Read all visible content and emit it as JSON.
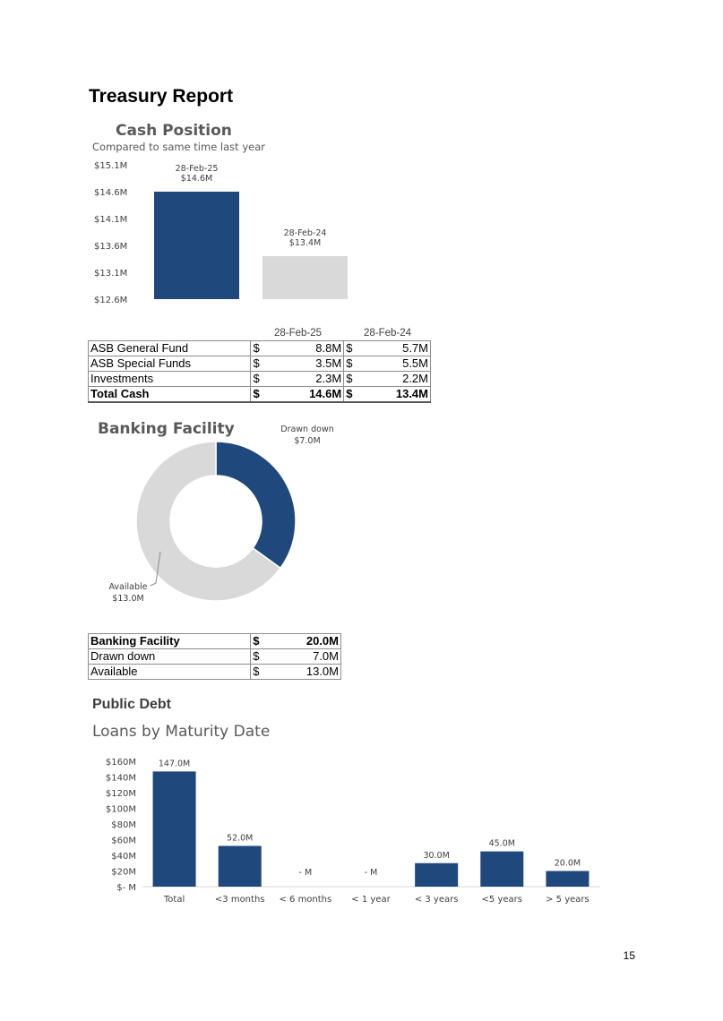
{
  "page_title": "Treasury Report",
  "cash_position": {
    "title": "Cash Position",
    "subtitle": "Compared to same time last year",
    "chart_data": {
      "type": "bar",
      "categories": [
        "28-Feb-25",
        "28-Feb-24"
      ],
      "values": [
        14.6,
        13.4
      ],
      "data_labels": [
        "28-Feb-25\n$14.6M",
        "28-Feb-24\n$13.4M"
      ],
      "ylim": [
        12.6,
        15.1
      ],
      "y_ticks": [
        "$15.1M",
        "$14.6M",
        "$14.1M",
        "$13.6M",
        "$13.1M",
        "$12.6M"
      ],
      "colors": [
        "#1f497d",
        "#d9d9d9"
      ],
      "grid": false
    }
  },
  "cash_table": {
    "headers": [
      "28-Feb-25",
      "28-Feb-24"
    ],
    "rows": [
      {
        "label": "ASB General Fund",
        "c1": "$",
        "v1": "8.8M",
        "c2": "$",
        "v2": "5.7M"
      },
      {
        "label": "ASB Special Funds",
        "c1": "$",
        "v1": "3.5M",
        "c2": "$",
        "v2": "5.5M"
      },
      {
        "label": "Investments",
        "c1": "$",
        "v1": "2.3M",
        "c2": "$",
        "v2": "2.2M"
      }
    ],
    "total": {
      "label": "Total Cash",
      "c1": "$",
      "v1": "14.6M",
      "c2": "$",
      "v2": "13.4M"
    }
  },
  "banking_facility": {
    "title": "Banking Facility",
    "chart_data": {
      "type": "pie",
      "labels": [
        "Drawn down",
        "Available"
      ],
      "values": [
        7.0,
        13.0
      ],
      "value_labels": [
        "$7.0M",
        "$13.0M"
      ],
      "colors": [
        "#1f497d",
        "#d9d9d9"
      ],
      "donut": true
    }
  },
  "facility_table": {
    "total": {
      "label": "Banking Facility",
      "c": "$",
      "v": "20.0M"
    },
    "rows": [
      {
        "label": "Drawn down",
        "c": "$",
        "v": "7.0M"
      },
      {
        "label": "Available",
        "c": "$",
        "v": "13.0M"
      }
    ]
  },
  "public_debt": {
    "section_title": "Public Debt",
    "title": "Loans by Maturity Date",
    "chart_data": {
      "type": "bar",
      "categories": [
        "Total",
        "<3 months",
        "< 6 months",
        "< 1 year",
        "< 3 years",
        "<5 years",
        "> 5 years"
      ],
      "values": [
        147.0,
        52.0,
        0,
        0,
        30.0,
        45.0,
        20.0
      ],
      "data_labels": [
        "147.0M",
        "52.0M",
        "- M",
        "- M",
        "30.0M",
        "45.0M",
        "20.0M"
      ],
      "ylim": [
        0,
        160
      ],
      "y_ticks": [
        "$160M",
        "$140M",
        "$120M",
        "$100M",
        "$80M",
        "$60M",
        "$40M",
        "$20M",
        "$- M"
      ],
      "color": "#1f497d",
      "grid": false
    }
  },
  "page_number": "15"
}
